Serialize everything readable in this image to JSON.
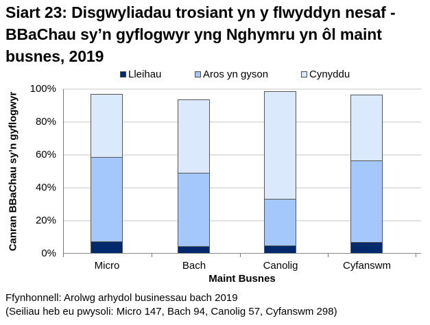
{
  "title": "Siart 23: Disgwyliadau trosiant yn y flwyddyn nesaf - BBaChau sy’n gyflogwyr yng Nghymru yn ôl maint busnes, 2019",
  "title_lines": [
    "Siart 23: Disgwyliadau trosiant yn y flwyddyn nesaf -",
    "BBaChau sy’n gyflogwyr yng Nghymru yn ôl maint",
    "busnes, 2019"
  ],
  "legend": [
    {
      "label": "Lleihau",
      "color": "#002a6b"
    },
    {
      "label": "Aros yn gyson",
      "color": "#a4c8fc"
    },
    {
      "label": "Cynyddu",
      "color": "#dbe9fd"
    }
  ],
  "y_axis": {
    "label": "Canran BBaChau sy’n gyflogwyr",
    "ticks": [
      "0%",
      "20%",
      "40%",
      "60%",
      "80%",
      "100%"
    ]
  },
  "x_axis": {
    "label": "Maint Busnes",
    "categories": [
      "Micro",
      "Bach",
      "Canolig",
      "Cyfanswm"
    ]
  },
  "footer": {
    "source": "Ffynhonnell: Arolwg arhydol businessau bach 2019",
    "note": "(Seiliau heb eu pwysoli: Micro 147, Bach 94, Canolig 57, Cyfanswm 298)"
  },
  "chart_data": {
    "type": "bar",
    "stacked": true,
    "title": "Siart 23: Disgwyliadau trosiant yn y flwyddyn nesaf - BBaChau sy’n gyflogwyr yng Nghymru yn ôl maint busnes, 2019",
    "categories": [
      "Micro",
      "Bach",
      "Canolig",
      "Cyfanswm"
    ],
    "series": [
      {
        "name": "Lleihau",
        "color": "#002a6b",
        "values": [
          7.5,
          4.5,
          5.0,
          7.0
        ]
      },
      {
        "name": "Aros yn gyson",
        "color": "#a4c8fc",
        "values": [
          51.3,
          44.5,
          28.3,
          49.7
        ]
      },
      {
        "name": "Cynyddu",
        "color": "#dbe9fd",
        "values": [
          38.2,
          44.7,
          65.4,
          40.0
        ]
      }
    ],
    "xlabel": "Maint Busnes",
    "ylabel": "Canran BBaChau sy’n gyflogwyr",
    "ylim": [
      0,
      100
    ],
    "yticks": [
      "0%",
      "20%",
      "40%",
      "60%",
      "80%",
      "100%"
    ],
    "grid": true,
    "legend_position": "top"
  }
}
